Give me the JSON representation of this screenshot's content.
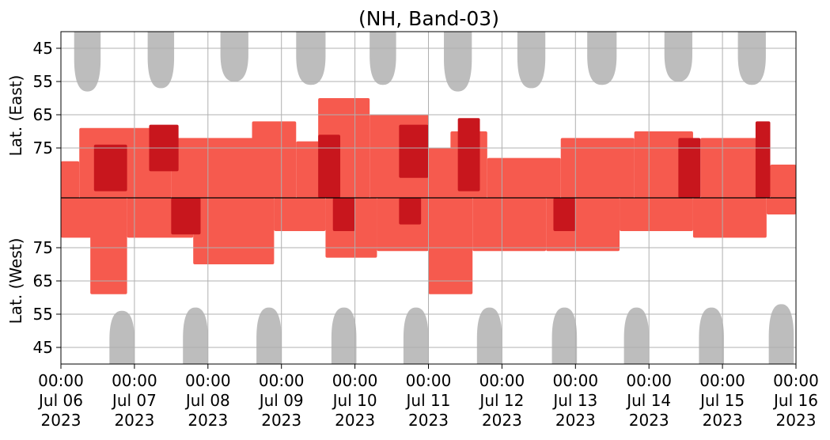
{
  "chart_data": {
    "type": "heatmap",
    "title": "(NH, Band-03)",
    "ylabel_top": "Lat. (East)",
    "ylabel_bottom": "Lat. (West)",
    "x_range": [
      "2023-07-06 00:00",
      "2023-07-16 00:00"
    ],
    "x_ticks": [
      {
        "date": "2023-07-06",
        "time": "00:00",
        "day": "Jul 06",
        "year": "2023"
      },
      {
        "date": "2023-07-07",
        "time": "00:00",
        "day": "Jul 07",
        "year": "2023"
      },
      {
        "date": "2023-07-08",
        "time": "00:00",
        "day": "Jul 08",
        "year": "2023"
      },
      {
        "date": "2023-07-09",
        "time": "00:00",
        "day": "Jul 09",
        "year": "2023"
      },
      {
        "date": "2023-07-10",
        "time": "00:00",
        "day": "Jul 10",
        "year": "2023"
      },
      {
        "date": "2023-07-11",
        "time": "00:00",
        "day": "Jul 11",
        "year": "2023"
      },
      {
        "date": "2023-07-12",
        "time": "00:00",
        "day": "Jul 12",
        "year": "2023"
      },
      {
        "date": "2023-07-13",
        "time": "00:00",
        "day": "Jul 13",
        "year": "2023"
      },
      {
        "date": "2023-07-14",
        "time": "00:00",
        "day": "Jul 14",
        "year": "2023"
      },
      {
        "date": "2023-07-15",
        "time": "00:00",
        "day": "Jul 15",
        "year": "2023"
      },
      {
        "date": "2023-07-16",
        "time": "00:00",
        "day": "Jul 16",
        "year": "2023"
      }
    ],
    "y_ticks_top": [
      45,
      55,
      65,
      75
    ],
    "y_ticks_bottom": [
      75,
      65,
      55,
      45
    ],
    "y_range_deg": [
      40,
      90
    ],
    "grid": true,
    "colors": {
      "light_red": "#f65a4e",
      "dark_red": "#c8161d",
      "gray": "#bdbdbd",
      "grid": "#b0b0b0",
      "divider": "#000000"
    },
    "gray_regions_top": [
      {
        "day": 0.36,
        "half_width": 0.18,
        "min_lat": 58
      },
      {
        "day": 1.36,
        "half_width": 0.18,
        "min_lat": 57
      },
      {
        "day": 2.36,
        "half_width": 0.19,
        "min_lat": 55
      },
      {
        "day": 3.4,
        "half_width": 0.2,
        "min_lat": 56
      },
      {
        "day": 4.38,
        "half_width": 0.18,
        "min_lat": 56
      },
      {
        "day": 5.4,
        "half_width": 0.19,
        "min_lat": 58
      },
      {
        "day": 6.4,
        "half_width": 0.19,
        "min_lat": 57
      },
      {
        "day": 7.36,
        "half_width": 0.2,
        "min_lat": 56
      },
      {
        "day": 8.4,
        "half_width": 0.19,
        "min_lat": 55
      },
      {
        "day": 9.4,
        "half_width": 0.19,
        "min_lat": 56
      }
    ],
    "gray_regions_bottom": [
      {
        "day": 0.83,
        "half_width": 0.17,
        "min_lat": 56
      },
      {
        "day": 1.83,
        "half_width": 0.17,
        "min_lat": 57
      },
      {
        "day": 2.83,
        "half_width": 0.17,
        "min_lat": 57
      },
      {
        "day": 3.85,
        "half_width": 0.17,
        "min_lat": 57
      },
      {
        "day": 4.83,
        "half_width": 0.17,
        "min_lat": 57
      },
      {
        "day": 5.83,
        "half_width": 0.17,
        "min_lat": 57
      },
      {
        "day": 6.85,
        "half_width": 0.17,
        "min_lat": 57
      },
      {
        "day": 7.83,
        "half_width": 0.17,
        "min_lat": 57
      },
      {
        "day": 8.85,
        "half_width": 0.17,
        "min_lat": 57
      },
      {
        "day": 9.8,
        "half_width": 0.17,
        "min_lat": 58
      }
    ],
    "red_bands": [
      {
        "side": "east",
        "day_start": 0.0,
        "day_end": 0.25,
        "lat_min": 79,
        "lat_max": 90,
        "intensity": "light"
      },
      {
        "side": "east",
        "day_start": 0.25,
        "day_end": 1.5,
        "lat_min": 69,
        "lat_max": 90,
        "intensity": "light"
      },
      {
        "side": "east",
        "day_start": 0.45,
        "day_end": 0.9,
        "lat_min": 74,
        "lat_max": 88,
        "intensity": "dark"
      },
      {
        "side": "east",
        "day_start": 1.2,
        "day_end": 1.6,
        "lat_min": 68,
        "lat_max": 82,
        "intensity": "dark"
      },
      {
        "side": "east",
        "day_start": 1.5,
        "day_end": 2.8,
        "lat_min": 72,
        "lat_max": 90,
        "intensity": "light"
      },
      {
        "side": "east",
        "day_start": 2.6,
        "day_end": 3.2,
        "lat_min": 67,
        "lat_max": 90,
        "intensity": "light"
      },
      {
        "side": "east",
        "day_start": 3.2,
        "day_end": 3.6,
        "lat_min": 73,
        "lat_max": 90,
        "intensity": "light"
      },
      {
        "side": "east",
        "day_start": 3.5,
        "day_end": 4.2,
        "lat_min": 60,
        "lat_max": 90,
        "intensity": "light"
      },
      {
        "side": "east",
        "day_start": 3.5,
        "day_end": 3.8,
        "lat_min": 71,
        "lat_max": 90,
        "intensity": "dark"
      },
      {
        "side": "east",
        "day_start": 4.2,
        "day_end": 5.0,
        "lat_min": 65,
        "lat_max": 90,
        "intensity": "light"
      },
      {
        "side": "east",
        "day_start": 4.6,
        "day_end": 5.0,
        "lat_min": 68,
        "lat_max": 84,
        "intensity": "dark"
      },
      {
        "side": "east",
        "day_start": 5.0,
        "day_end": 5.5,
        "lat_min": 75,
        "lat_max": 90,
        "intensity": "light"
      },
      {
        "side": "east",
        "day_start": 5.3,
        "day_end": 5.8,
        "lat_min": 70,
        "lat_max": 90,
        "intensity": "light"
      },
      {
        "side": "east",
        "day_start": 5.4,
        "day_end": 5.7,
        "lat_min": 66,
        "lat_max": 88,
        "intensity": "dark"
      },
      {
        "side": "east",
        "day_start": 5.8,
        "day_end": 6.8,
        "lat_min": 78,
        "lat_max": 90,
        "intensity": "light"
      },
      {
        "side": "east",
        "day_start": 6.8,
        "day_end": 7.8,
        "lat_min": 72,
        "lat_max": 90,
        "intensity": "light"
      },
      {
        "side": "east",
        "day_start": 7.8,
        "day_end": 8.6,
        "lat_min": 70,
        "lat_max": 90,
        "intensity": "light"
      },
      {
        "side": "east",
        "day_start": 8.4,
        "day_end": 8.7,
        "lat_min": 72,
        "lat_max": 90,
        "intensity": "dark"
      },
      {
        "side": "east",
        "day_start": 8.7,
        "day_end": 9.6,
        "lat_min": 72,
        "lat_max": 90,
        "intensity": "light"
      },
      {
        "side": "east",
        "day_start": 9.45,
        "day_end": 9.65,
        "lat_min": 67,
        "lat_max": 90,
        "intensity": "dark"
      },
      {
        "side": "east",
        "day_start": 9.65,
        "day_end": 10.0,
        "lat_min": 80,
        "lat_max": 90,
        "intensity": "light"
      },
      {
        "side": "west",
        "day_start": 0.0,
        "day_end": 0.5,
        "lat_min": 78,
        "lat_max": 90,
        "intensity": "light"
      },
      {
        "side": "west",
        "day_start": 0.4,
        "day_end": 0.9,
        "lat_min": 61,
        "lat_max": 90,
        "intensity": "light"
      },
      {
        "side": "west",
        "day_start": 0.9,
        "day_end": 1.8,
        "lat_min": 78,
        "lat_max": 90,
        "intensity": "light"
      },
      {
        "side": "west",
        "day_start": 1.5,
        "day_end": 1.9,
        "lat_min": 79,
        "lat_max": 90,
        "intensity": "dark"
      },
      {
        "side": "west",
        "day_start": 1.8,
        "day_end": 2.9,
        "lat_min": 70,
        "lat_max": 90,
        "intensity": "light"
      },
      {
        "side": "west",
        "day_start": 2.9,
        "day_end": 3.6,
        "lat_min": 80,
        "lat_max": 90,
        "intensity": "light"
      },
      {
        "side": "west",
        "day_start": 3.6,
        "day_end": 4.3,
        "lat_min": 72,
        "lat_max": 90,
        "intensity": "light"
      },
      {
        "side": "west",
        "day_start": 3.7,
        "day_end": 4.0,
        "lat_min": 80,
        "lat_max": 90,
        "intensity": "dark"
      },
      {
        "side": "west",
        "day_start": 4.3,
        "day_end": 5.0,
        "lat_min": 74,
        "lat_max": 90,
        "intensity": "light"
      },
      {
        "side": "west",
        "day_start": 4.6,
        "day_end": 4.9,
        "lat_min": 82,
        "lat_max": 90,
        "intensity": "dark"
      },
      {
        "side": "west",
        "day_start": 5.0,
        "day_end": 5.6,
        "lat_min": 61,
        "lat_max": 90,
        "intensity": "light"
      },
      {
        "side": "west",
        "day_start": 5.6,
        "day_end": 6.6,
        "lat_min": 74,
        "lat_max": 90,
        "intensity": "light"
      },
      {
        "side": "west",
        "day_start": 6.6,
        "day_end": 7.6,
        "lat_min": 74,
        "lat_max": 90,
        "intensity": "light"
      },
      {
        "side": "west",
        "day_start": 6.7,
        "day_end": 7.0,
        "lat_min": 80,
        "lat_max": 90,
        "intensity": "dark"
      },
      {
        "side": "west",
        "day_start": 7.6,
        "day_end": 8.6,
        "lat_min": 80,
        "lat_max": 90,
        "intensity": "light"
      },
      {
        "side": "west",
        "day_start": 8.6,
        "day_end": 9.6,
        "lat_min": 78,
        "lat_max": 90,
        "intensity": "light"
      },
      {
        "side": "west",
        "day_start": 9.6,
        "day_end": 10.0,
        "lat_min": 85,
        "lat_max": 90,
        "intensity": "light"
      }
    ]
  }
}
